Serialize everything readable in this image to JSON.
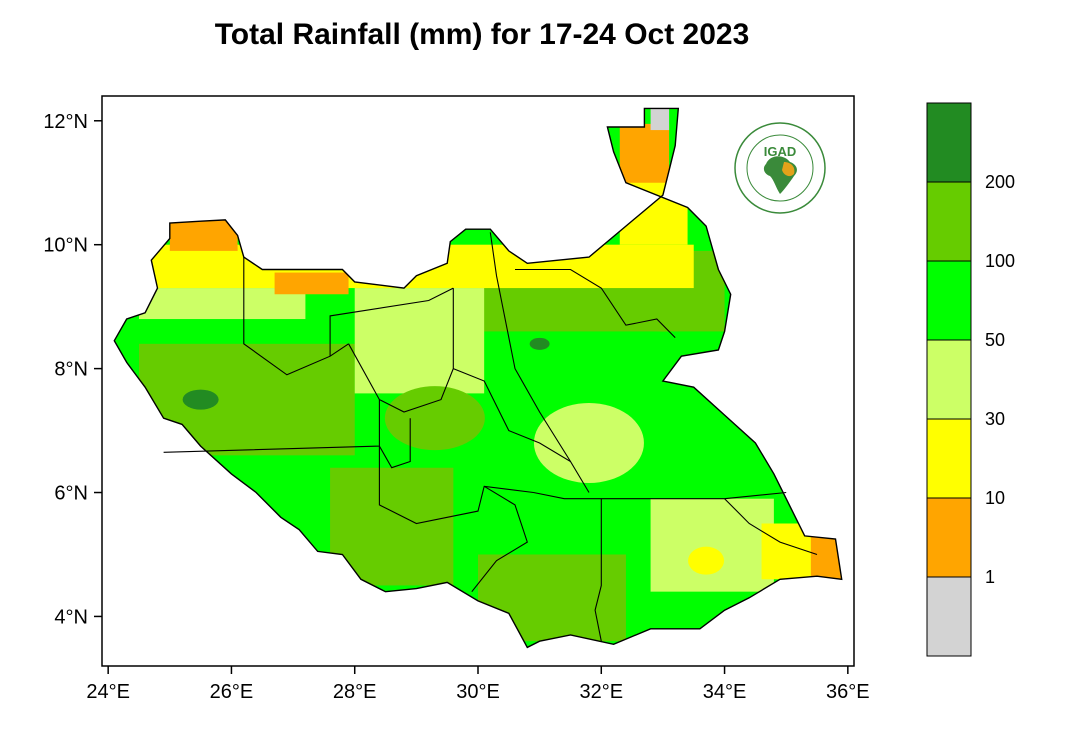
{
  "title": "Total Rainfall (mm) for 17-24 Oct 2023",
  "logo": {
    "text": "IGAD",
    "brand_color": "#3a8a3a",
    "accent_color": "#e3a21a"
  },
  "axes": {
    "x_ticks": [
      "24°E",
      "26°E",
      "28°E",
      "30°E",
      "32°E",
      "34°E",
      "36°E"
    ],
    "y_ticks": [
      "12°N",
      "10°N",
      "8°N",
      "6°N",
      "4°N"
    ]
  },
  "colorbar": {
    "colors": [
      "#228b22",
      "#66cc00",
      "#00ff00",
      "#ccff66",
      "#ffff00",
      "#ffa500",
      "#d3d3d3"
    ],
    "labels": [
      "200",
      "100",
      "50",
      "30",
      "10",
      "1"
    ]
  },
  "chart_data": {
    "type": "heatmap",
    "title": "Total Rainfall (mm) for 17-24 Oct 2023",
    "xlim": [
      23.9,
      36.1
    ],
    "ylim": [
      3.2,
      12.4
    ],
    "x_ticks": [
      24,
      26,
      28,
      30,
      32,
      34,
      36
    ],
    "y_ticks": [
      12,
      10,
      8,
      6,
      4
    ],
    "levels_mm": [
      1,
      10,
      30,
      50,
      100,
      200
    ],
    "legend_position": "right"
  }
}
